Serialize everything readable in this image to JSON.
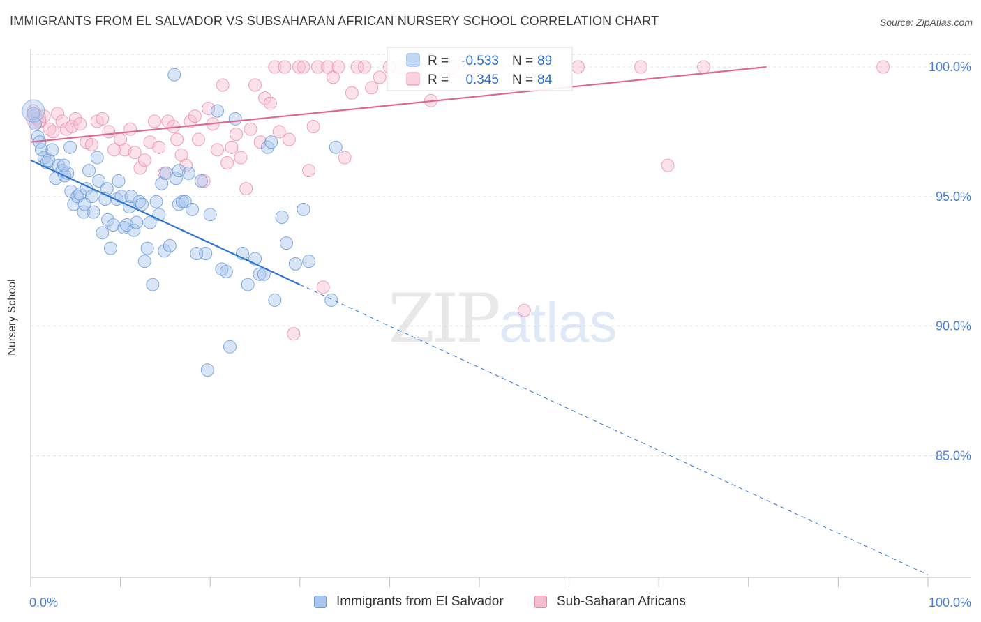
{
  "title": "IMMIGRANTS FROM EL SALVADOR VS SUBSAHARAN AFRICAN NURSERY SCHOOL CORRELATION CHART",
  "source": "Source: ZipAtlas.com",
  "watermark": {
    "zip": "ZIP",
    "atlas": "atlas"
  },
  "colors": {
    "blue_fill": "#a8c6ee",
    "blue_stroke": "#6b9bd8",
    "blue_line": "#2f74d0",
    "pink_fill": "#f6bfd0",
    "pink_stroke": "#e98aab",
    "pink_line": "#e0668e",
    "tick": "#4a7fd0",
    "grid": "#dddddd"
  },
  "legend_stats": [
    {
      "r_label": "R =",
      "r_value": "-0.533",
      "n_label": "N =",
      "n_value": "89"
    },
    {
      "r_label": "R =",
      "r_value": "0.345",
      "n_label": "N =",
      "n_value": "84"
    }
  ],
  "chart_data": {
    "type": "scatter",
    "title": "IMMIGRANTS FROM EL SALVADOR VS SUBSAHARAN AFRICAN NURSERY SCHOOL CORRELATION CHART",
    "xlabel": "",
    "ylabel": "Nursery School",
    "xlim": [
      0,
      100
    ],
    "ylim": [
      80.3,
      100.7
    ],
    "x_tick_labels": [
      "0.0%",
      "100.0%"
    ],
    "y_ticks": [
      100,
      95,
      90,
      85
    ],
    "y_tick_labels": [
      "100.0%",
      "95.0%",
      "90.0%",
      "85.0%"
    ],
    "grid": true,
    "legend_position": "bottom",
    "series": [
      {
        "name": "Immigrants from El Salvador",
        "r": -0.533,
        "n": 89,
        "trend": {
          "x": [
            0,
            30
          ],
          "y": [
            96.4,
            91.6
          ],
          "dashed_to": [
            100,
            80.4
          ]
        },
        "points": [
          [
            0.3,
            98.2
          ],
          [
            0.5,
            97.8
          ],
          [
            0.8,
            97.3
          ],
          [
            1.0,
            97.1
          ],
          [
            1.2,
            96.8
          ],
          [
            1.5,
            96.5
          ],
          [
            1.8,
            96.3
          ],
          [
            2.0,
            96.4
          ],
          [
            2.4,
            96.8
          ],
          [
            2.8,
            95.7
          ],
          [
            3.1,
            96.2
          ],
          [
            3.5,
            96.0
          ],
          [
            3.8,
            95.8
          ],
          [
            4.1,
            95.9
          ],
          [
            4.5,
            95.2
          ],
          [
            4.4,
            96.9
          ],
          [
            4.8,
            94.7
          ],
          [
            5.2,
            95.0
          ],
          [
            5.5,
            95.1
          ],
          [
            5.9,
            94.4
          ],
          [
            6.2,
            95.3
          ],
          [
            6.5,
            96.0
          ],
          [
            6.8,
            95.0
          ],
          [
            7.0,
            94.4
          ],
          [
            7.4,
            96.5
          ],
          [
            7.6,
            95.6
          ],
          [
            8.0,
            93.6
          ],
          [
            8.3,
            94.9
          ],
          [
            8.6,
            94.1
          ],
          [
            8.9,
            93.0
          ],
          [
            9.2,
            93.9
          ],
          [
            9.6,
            94.9
          ],
          [
            9.8,
            95.6
          ],
          [
            10.1,
            95.0
          ],
          [
            10.4,
            93.8
          ],
          [
            10.7,
            93.9
          ],
          [
            11.0,
            94.6
          ],
          [
            11.2,
            95.0
          ],
          [
            11.5,
            93.7
          ],
          [
            11.8,
            94.0
          ],
          [
            12.1,
            94.8
          ],
          [
            12.4,
            94.7
          ],
          [
            12.7,
            92.5
          ],
          [
            13.0,
            93.0
          ],
          [
            13.3,
            94.0
          ],
          [
            13.6,
            91.6
          ],
          [
            14.0,
            94.8
          ],
          [
            14.3,
            94.3
          ],
          [
            14.6,
            95.5
          ],
          [
            14.9,
            92.9
          ],
          [
            15.1,
            95.9
          ],
          [
            15.5,
            93.1
          ],
          [
            16.0,
            99.7
          ],
          [
            16.2,
            95.7
          ],
          [
            16.5,
            94.7
          ],
          [
            16.9,
            94.8
          ],
          [
            17.2,
            94.8
          ],
          [
            17.6,
            95.9
          ],
          [
            18.0,
            94.5
          ],
          [
            18.5,
            92.8
          ],
          [
            19.0,
            95.6
          ],
          [
            19.5,
            92.8
          ],
          [
            20.0,
            94.3
          ],
          [
            20.8,
            98.3
          ],
          [
            21.3,
            92.2
          ],
          [
            21.8,
            92.1
          ],
          [
            22.2,
            89.2
          ],
          [
            22.8,
            98.0
          ],
          [
            23.6,
            92.8
          ],
          [
            24.2,
            91.6
          ],
          [
            25.0,
            92.6
          ],
          [
            25.5,
            92.0
          ],
          [
            26.0,
            92.0
          ],
          [
            26.4,
            96.9
          ],
          [
            26.8,
            97.1
          ],
          [
            27.2,
            91.0
          ],
          [
            28.0,
            94.2
          ],
          [
            28.5,
            93.2
          ],
          [
            29.5,
            92.4
          ],
          [
            30.4,
            94.5
          ],
          [
            31.0,
            92.5
          ],
          [
            33.5,
            91.0
          ],
          [
            34.0,
            96.9
          ],
          [
            16.5,
            96.0
          ],
          [
            19.7,
            88.3
          ],
          [
            8.5,
            95.3
          ],
          [
            6.0,
            94.7
          ],
          [
            3.7,
            96.2
          ]
        ]
      },
      {
        "name": "Sub-Saharan Africans",
        "r": 0.345,
        "n": 84,
        "trend": {
          "x": [
            0,
            82
          ],
          "y": [
            97.1,
            100.0
          ]
        },
        "points": [
          [
            0.3,
            98.3
          ],
          [
            0.7,
            98.0
          ],
          [
            1.0,
            97.9
          ],
          [
            1.5,
            98.1
          ],
          [
            2.1,
            97.6
          ],
          [
            2.5,
            97.5
          ],
          [
            3.0,
            98.2
          ],
          [
            3.5,
            97.9
          ],
          [
            4.0,
            97.6
          ],
          [
            4.6,
            97.7
          ],
          [
            5.0,
            98.0
          ],
          [
            5.5,
            97.8
          ],
          [
            6.2,
            97.1
          ],
          [
            6.8,
            97.0
          ],
          [
            7.4,
            97.9
          ],
          [
            8.0,
            98.0
          ],
          [
            8.7,
            97.5
          ],
          [
            9.3,
            96.8
          ],
          [
            10.0,
            97.2
          ],
          [
            10.5,
            96.8
          ],
          [
            11.1,
            97.6
          ],
          [
            11.6,
            96.7
          ],
          [
            12.2,
            96.1
          ],
          [
            12.7,
            96.4
          ],
          [
            13.3,
            97.1
          ],
          [
            13.8,
            97.9
          ],
          [
            14.3,
            96.9
          ],
          [
            14.9,
            95.9
          ],
          [
            15.3,
            97.9
          ],
          [
            15.9,
            97.7
          ],
          [
            16.3,
            97.2
          ],
          [
            16.8,
            96.6
          ],
          [
            17.3,
            96.2
          ],
          [
            17.8,
            97.9
          ],
          [
            18.3,
            98.1
          ],
          [
            18.7,
            97.2
          ],
          [
            19.3,
            95.6
          ],
          [
            19.8,
            98.4
          ],
          [
            20.3,
            97.8
          ],
          [
            20.8,
            96.8
          ],
          [
            21.4,
            99.3
          ],
          [
            21.9,
            96.3
          ],
          [
            22.4,
            96.9
          ],
          [
            22.9,
            97.4
          ],
          [
            23.4,
            96.5
          ],
          [
            24.0,
            95.3
          ],
          [
            24.5,
            97.6
          ],
          [
            25.0,
            99.3
          ],
          [
            25.6,
            97.1
          ],
          [
            26.1,
            98.8
          ],
          [
            26.7,
            98.6
          ],
          [
            27.2,
            100.0
          ],
          [
            27.7,
            97.5
          ],
          [
            28.3,
            100.0
          ],
          [
            28.8,
            97.2
          ],
          [
            29.3,
            89.7
          ],
          [
            29.9,
            100.0
          ],
          [
            30.4,
            100.0
          ],
          [
            31.0,
            96.0
          ],
          [
            31.5,
            97.7
          ],
          [
            32.0,
            100.0
          ],
          [
            32.6,
            91.5
          ],
          [
            33.1,
            100.0
          ],
          [
            33.7,
            99.6
          ],
          [
            34.3,
            100.0
          ],
          [
            35.0,
            96.5
          ],
          [
            35.8,
            99.0
          ],
          [
            36.4,
            100.0
          ],
          [
            37.2,
            100.0
          ],
          [
            38.0,
            99.2
          ],
          [
            38.9,
            99.6
          ],
          [
            40.0,
            100.0
          ],
          [
            41.3,
            100.0
          ],
          [
            43.0,
            100.0
          ],
          [
            44.6,
            98.7
          ],
          [
            47.0,
            100.0
          ],
          [
            49.0,
            100.0
          ],
          [
            52.0,
            100.0
          ],
          [
            55.0,
            90.6
          ],
          [
            61.0,
            100.0
          ],
          [
            68.0,
            100.0
          ],
          [
            71.0,
            96.2
          ],
          [
            75.0,
            100.0
          ],
          [
            95.0,
            100.0
          ]
        ]
      }
    ]
  },
  "bottom_legend": [
    {
      "label": "Immigrants from El Salvador"
    },
    {
      "label": "Sub-Saharan Africans"
    }
  ]
}
